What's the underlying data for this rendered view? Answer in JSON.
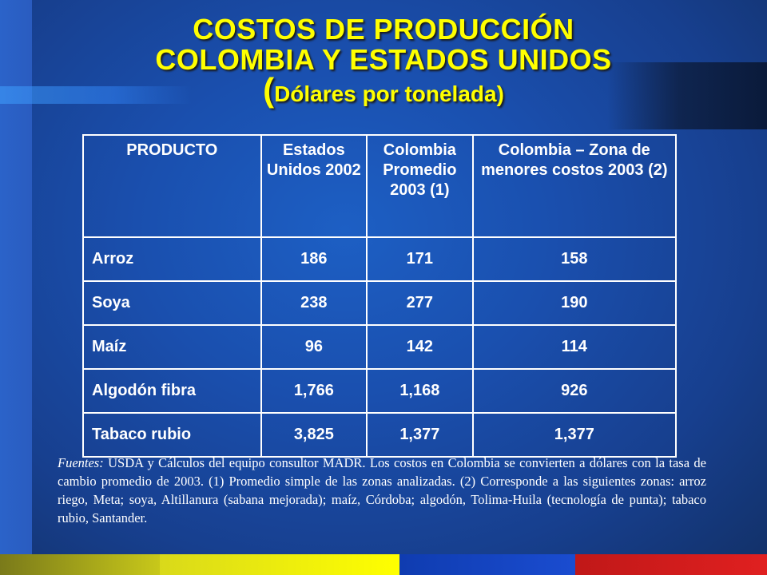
{
  "title": {
    "line1": "COSTOS DE PRODUCCIÓN",
    "line2": "COLOMBIA Y ESTADOS UNIDOS",
    "line3_open": "(",
    "line3_text": "Dólares por tonelada)"
  },
  "table": {
    "headers": [
      "PRODUCTO",
      "Estados Unidos 2002",
      "Colombia Promedio 2003 (1)",
      "Colombia – Zona de menores costos 2003 (2)"
    ],
    "rows": [
      [
        "Arroz",
        "186",
        "171",
        "158"
      ],
      [
        "Soya",
        "238",
        "277",
        "190"
      ],
      [
        "Maíz",
        "96",
        "142",
        "114"
      ],
      [
        "Algodón fibra",
        "1,766",
        "1,168",
        "926"
      ],
      [
        "Tabaco rubio",
        "3,825",
        "1,377",
        "1,377"
      ]
    ]
  },
  "sources": {
    "label": "Fuentes:",
    "text": " USDA y Cálculos del equipo consultor MADR. Los costos en Colombia se convierten a dólares con la tasa de cambio promedio de 2003. (1) Promedio simple de las zonas analizadas. (2) Corresponde a las siguientes zonas: arroz riego, Meta; soya, Altillanura (sabana mejorada); maíz, Córdoba; algodón, Tolima-Huila (tecnología de punta); tabaco rubio, Santander."
  },
  "colors": {
    "title": "#ffff00",
    "background": "#1a4fae",
    "table_text": "#ffffff"
  }
}
